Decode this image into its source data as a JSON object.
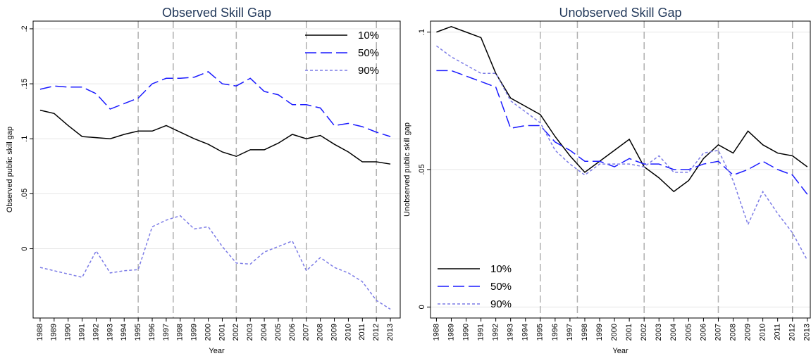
{
  "chart_data": [
    {
      "type": "line",
      "title": "Observed Skill Gap",
      "ylabel": "Observed public skill gap",
      "xlabel": "Year",
      "x": [
        1988,
        1989,
        1990,
        1991,
        1992,
        1993,
        1994,
        1995,
        1996,
        1997,
        1998,
        1999,
        2000,
        2001,
        2002,
        2003,
        2004,
        2005,
        2006,
        2007,
        2008,
        2009,
        2010,
        2011,
        2012,
        2013
      ],
      "xticks": [
        1988,
        1989,
        1990,
        1991,
        1992,
        1993,
        1994,
        1995,
        1996,
        1997,
        1998,
        1999,
        2000,
        2001,
        2002,
        2003,
        2004,
        2005,
        2006,
        2007,
        2008,
        2009,
        2010,
        2011,
        2012,
        2013
      ],
      "xlim": [
        1987.5,
        2013.7
      ],
      "ylim": [
        -0.063,
        0.207
      ],
      "yticks": [
        0,
        {
          "value": 0.05,
          "label": ".05"
        },
        {
          "value": 0.1,
          "label": ".1"
        },
        {
          "value": 0.15,
          "label": ".15"
        },
        {
          "value": 0.2,
          "label": ".2"
        }
      ],
      "vlines": [
        1995,
        1997.5,
        2002,
        2007,
        2012
      ],
      "grid": true,
      "legend": "top-right",
      "series": [
        {
          "name": "10%",
          "color": "#000000",
          "style": "solid",
          "values": [
            0.126,
            0.123,
            0.112,
            0.102,
            0.101,
            0.1,
            0.104,
            0.107,
            0.107,
            0.112,
            0.106,
            0.1,
            0.095,
            0.088,
            0.084,
            0.09,
            0.09,
            0.096,
            0.104,
            0.1,
            0.103,
            0.095,
            0.088,
            0.079,
            0.079,
            0.077
          ]
        },
        {
          "name": "50%",
          "color": "#1a1aff",
          "style": "long-dash",
          "values": [
            0.145,
            0.148,
            0.147,
            0.147,
            0.141,
            0.127,
            0.132,
            0.137,
            0.15,
            0.155,
            0.155,
            0.156,
            0.161,
            0.15,
            0.148,
            0.155,
            0.143,
            0.14,
            0.131,
            0.131,
            0.128,
            0.112,
            0.114,
            0.111,
            0.106,
            0.102
          ]
        },
        {
          "name": "90%",
          "color": "#7b7be6",
          "style": "short-dash",
          "values": [
            -0.017,
            -0.02,
            -0.023,
            -0.026,
            -0.002,
            -0.022,
            -0.02,
            -0.019,
            0.02,
            0.026,
            0.03,
            0.018,
            0.02,
            0.002,
            -0.013,
            -0.014,
            -0.003,
            0.002,
            0.007,
            -0.02,
            -0.008,
            -0.017,
            -0.022,
            -0.03,
            -0.047,
            -0.055
          ]
        }
      ]
    },
    {
      "type": "line",
      "title": "Unobserved Skill Gap",
      "ylabel": "Unobserved public skill gap",
      "xlabel": "Year",
      "x": [
        1988,
        1989,
        1990,
        1991,
        1992,
        1993,
        1994,
        1995,
        1996,
        1997,
        1998,
        1999,
        2000,
        2001,
        2002,
        2003,
        2004,
        2005,
        2006,
        2007,
        2008,
        2009,
        2010,
        2011,
        2012,
        2013
      ],
      "xticks": [
        1988,
        1989,
        1990,
        1991,
        1992,
        1993,
        1994,
        1995,
        1996,
        1997,
        1998,
        1999,
        2000,
        2001,
        2002,
        2003,
        2004,
        2005,
        2006,
        2007,
        2008,
        2009,
        2010,
        2011,
        2012,
        2013
      ],
      "xlim": [
        1987.6,
        2013.2
      ],
      "ylim": [
        -0.004,
        0.104
      ],
      "yticks": [
        0,
        {
          "value": 0.05,
          "label": ".05"
        },
        {
          "value": 0.1,
          "label": ".1"
        }
      ],
      "vlines": [
        1995,
        1997.5,
        2002,
        2007,
        2012
      ],
      "grid": true,
      "legend": "bottom-left",
      "series": [
        {
          "name": "10%",
          "color": "#000000",
          "style": "solid",
          "values": [
            0.1,
            0.102,
            0.1,
            0.098,
            0.085,
            0.076,
            0.073,
            0.07,
            0.062,
            0.055,
            0.049,
            0.053,
            0.057,
            0.061,
            0.051,
            0.047,
            0.042,
            0.046,
            0.054,
            0.059,
            0.056,
            0.064,
            0.059,
            0.056,
            0.055,
            0.051
          ]
        },
        {
          "name": "50%",
          "color": "#1a1aff",
          "style": "long-dash",
          "values": [
            0.086,
            0.086,
            0.084,
            0.082,
            0.08,
            0.065,
            0.066,
            0.066,
            0.06,
            0.057,
            0.053,
            0.053,
            0.051,
            0.054,
            0.052,
            0.052,
            0.05,
            0.05,
            0.052,
            0.053,
            0.048,
            0.05,
            0.053,
            0.05,
            0.048,
            0.041
          ]
        },
        {
          "name": "90%",
          "color": "#7b7be6",
          "style": "short-dash",
          "values": [
            0.095,
            0.091,
            0.088,
            0.085,
            0.085,
            0.075,
            0.071,
            0.067,
            0.057,
            0.052,
            0.048,
            0.052,
            0.052,
            0.052,
            0.051,
            0.055,
            0.049,
            0.049,
            0.056,
            0.057,
            0.046,
            0.03,
            0.042,
            0.034,
            0.027,
            0.017
          ]
        }
      ]
    }
  ]
}
